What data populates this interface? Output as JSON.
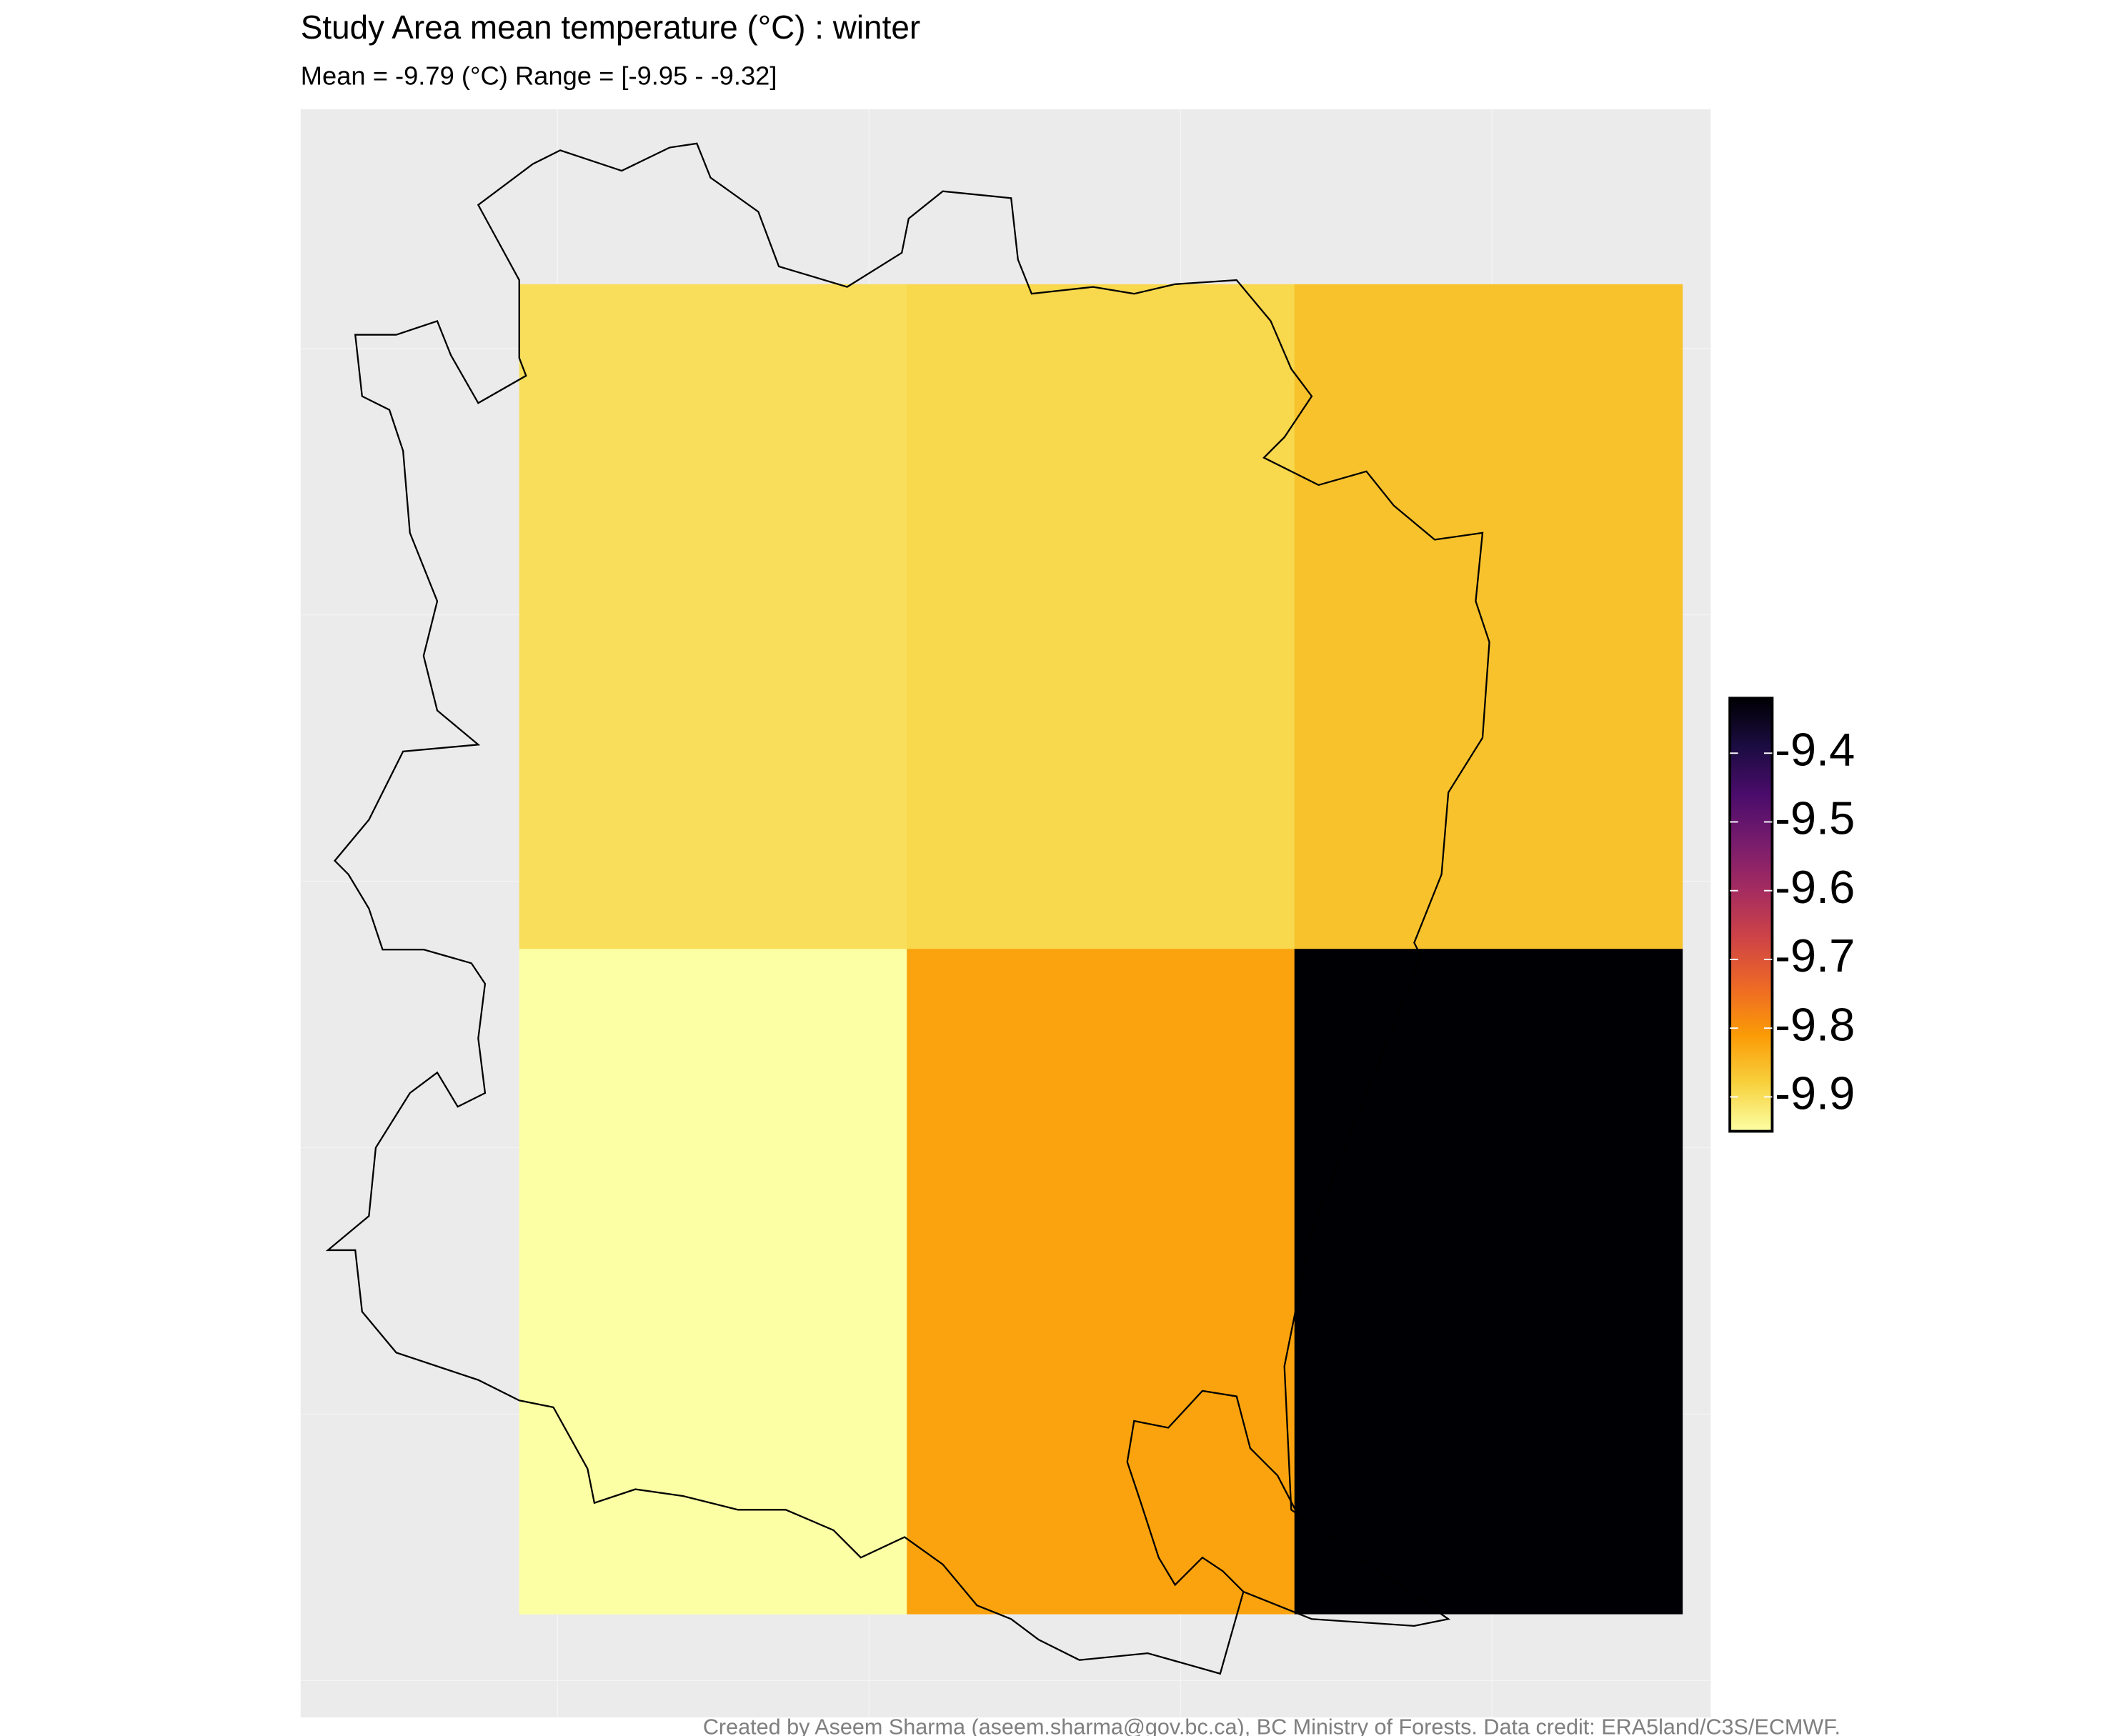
{
  "chart_data": {
    "type": "raster",
    "title": "Study Area mean temperature (°C) : winter",
    "subtitle": "Mean = -9.79 (°C)  Range = [-9.95 - -9.32]",
    "caption": "Created by Aseem Sharma (aseem.sharma@gov.bc.ca), BC Ministry of Forests. Data credit: ERA5land/C3S/ECMWF.",
    "values": [
      [
        -9.9,
        -9.89,
        -9.86
      ],
      [
        -9.95,
        -9.82,
        -9.32
      ]
    ],
    "clim": [
      -9.95,
      -9.32
    ],
    "colorbar_ticks": [
      -9.4,
      -9.5,
      -9.6,
      -9.7,
      -9.8,
      -9.9
    ],
    "colormap": [
      "#fcffa4",
      "#f7d13d",
      "#fb9b06",
      "#ed6925",
      "#cf4446",
      "#a52c60",
      "#781c6d",
      "#4a0c6b",
      "#1b0c41",
      "#000004"
    ]
  }
}
